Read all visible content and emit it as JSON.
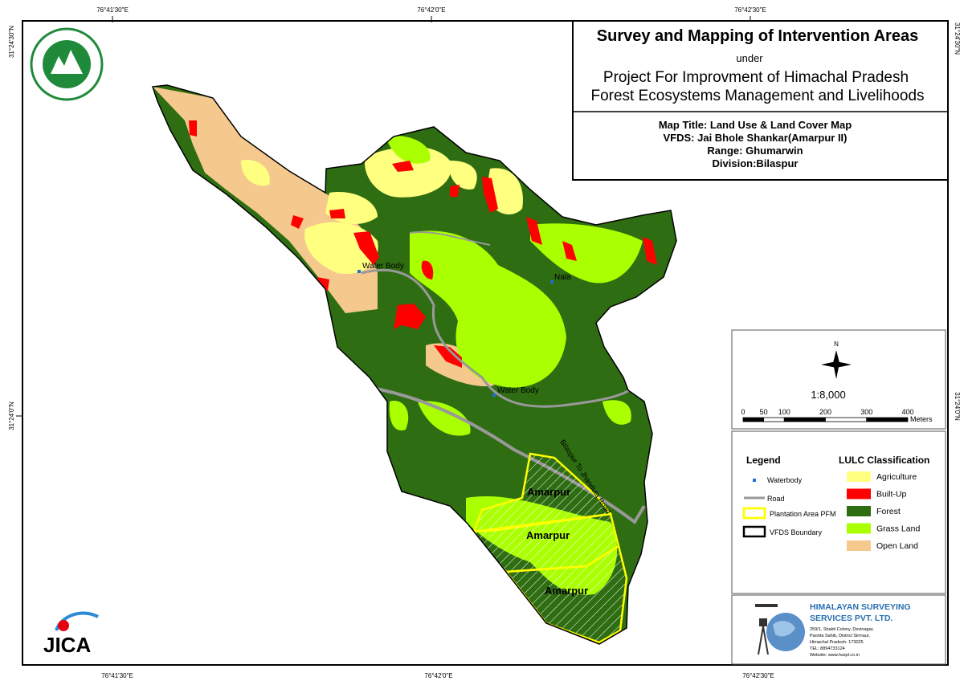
{
  "coordinates": {
    "top": [
      "76°41'30\"E",
      "76°42'0\"E",
      "76°42'30\"E"
    ],
    "bottom": [
      "76°41'30\"E",
      "76°42'0\"E",
      "76°42'30\"E"
    ],
    "left": [
      "31°24'30\"N",
      "31°24'0\"N"
    ],
    "right": [
      "31°24'30\"N",
      "31°24'0\"N"
    ]
  },
  "title_block": {
    "title": "Survey and Mapping of Intervention Areas",
    "under": "under",
    "project": [
      "Project For Improvment of Himachal Pradesh",
      "Forest Ecosystems Management and Livelihoods"
    ],
    "map_title": "Map Title: Land Use & Land Cover Map",
    "vfds": "VFDS: Jai Bhole Shankar(Amarpur II)",
    "range": "Range: Ghumarwin",
    "division": "Division:Bilaspur"
  },
  "map_labels": {
    "water_body_1": "Water Body",
    "nala": "Nala",
    "water_body_2": "Water Body",
    "road": "Bilaspur To Jhanduta Road",
    "plantations": [
      "Amarpur",
      "Amarpur",
      "Amarpur"
    ]
  },
  "north": "N",
  "scale": "1:8,000",
  "scale_bar": {
    "ticks": [
      0,
      50,
      100,
      200,
      300,
      400
    ],
    "unit": "Meters"
  },
  "legend": {
    "title": "Legend",
    "items": [
      "Waterbody",
      "Road",
      "Plantation Area PFM",
      "VFDS Boundary"
    ]
  },
  "lulc": {
    "title": "LULC Classification",
    "classes": [
      {
        "name": "Agriculture",
        "color": "#ffff80"
      },
      {
        "name": "Built-Up",
        "color": "#ff0000"
      },
      {
        "name": "Forest",
        "color": "#2e6d12"
      },
      {
        "name": "Grass Land",
        "color": "#aaff00"
      },
      {
        "name": "Open Land",
        "color": "#f5c98d"
      }
    ]
  },
  "logo": {
    "jica": "JICA"
  },
  "company": {
    "name": [
      "HIMALAYAN SURVEYING",
      "SERVICES PVT. LTD."
    ],
    "address": [
      "259/1, Shakti Colony, Devinagar,",
      "Paonta Sahib, District Sirmaur,",
      "Himachal Pradesh- 173025",
      "TEL: 8894733124",
      "Website: www.hsspl.co.in"
    ]
  }
}
